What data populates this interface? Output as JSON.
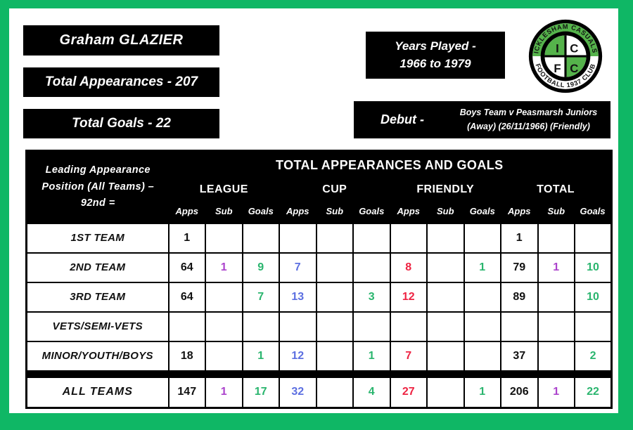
{
  "page": {
    "bg_color": "#0fb765",
    "player_name": "Graham GLAZIER",
    "total_appearances_label": "Total Appearances - 207",
    "total_goals_label": "Total Goals - 22",
    "years_played_line1": "Years Played -",
    "years_played_line2": "1966 to 1979",
    "debut_label": "Debut -",
    "debut_line1": "Boys Team v Peasmarsh Juniors",
    "debut_line2": "(Away) (26/11/1966) (Friendly)"
  },
  "logo": {
    "top_text": "ICKLESHAM CASUALS",
    "bottom_text": "FOOTBALL 1937 CLUB",
    "quadrant_letters": [
      "I",
      "C",
      "F",
      "C"
    ],
    "green": "#55b34b"
  },
  "colors": {
    "black": "#111111",
    "purple": "#ab42cc",
    "green": "#2ab56e",
    "blue": "#5c6fe1",
    "red": "#ee2342"
  },
  "table": {
    "title": "TOTAL APPEARANCES AND GOALS",
    "left_header": [
      "Leading Appearance",
      "Position (All Teams) –",
      "92nd ="
    ],
    "groups": [
      "LEAGUE",
      "CUP",
      "FRIENDLY",
      "TOTAL"
    ],
    "sub_headers": [
      "Apps",
      "Sub",
      "Goals",
      "Apps",
      "Sub",
      "Goals",
      "Apps",
      "Sub",
      "Goals",
      "Apps",
      "Sub",
      "Goals"
    ],
    "col_colors": [
      "black",
      "purple",
      "green",
      "blue",
      "purple",
      "green",
      "red",
      "purple",
      "green",
      "black",
      "purple",
      "green"
    ],
    "rows": [
      {
        "team": "1ST TEAM",
        "cells": [
          "1",
          "",
          "",
          "",
          "",
          "",
          "",
          "",
          "",
          "1",
          "",
          ""
        ]
      },
      {
        "team": "2ND TEAM",
        "cells": [
          "64",
          "1",
          "9",
          "7",
          "",
          "",
          "8",
          "",
          "1",
          "79",
          "1",
          "10"
        ]
      },
      {
        "team": "3RD TEAM",
        "cells": [
          "64",
          "",
          "7",
          "13",
          "",
          "3",
          "12",
          "",
          "",
          "89",
          "",
          "10"
        ]
      },
      {
        "team": "VETS/SEMI-VETS",
        "cells": [
          "",
          "",
          "",
          "",
          "",
          "",
          "",
          "",
          "",
          "",
          "",
          ""
        ]
      },
      {
        "team": "MINOR/YOUTH/BOYS",
        "cells": [
          "18",
          "",
          "1",
          "12",
          "",
          "1",
          "7",
          "",
          "",
          "37",
          "",
          "2"
        ]
      }
    ],
    "total_row": {
      "team": "ALL TEAMS",
      "cells": [
        "147",
        "1",
        "17",
        "32",
        "",
        "4",
        "27",
        "",
        "1",
        "206",
        "1",
        "22"
      ]
    }
  }
}
